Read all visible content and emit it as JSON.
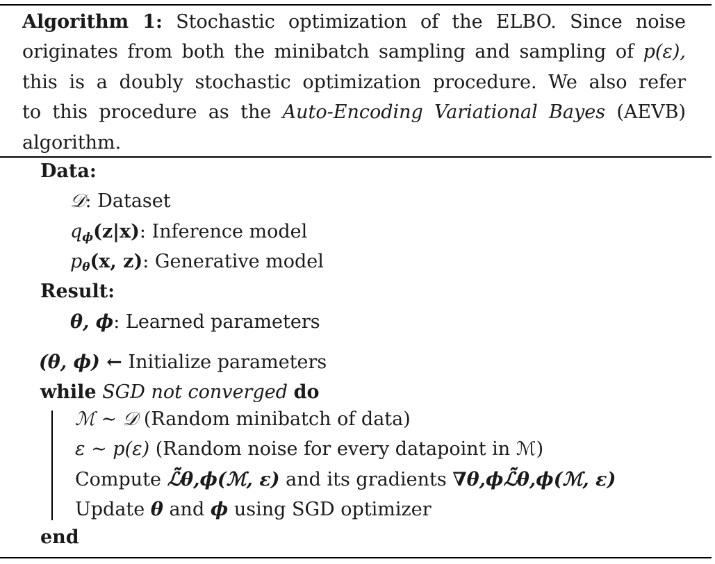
{
  "caption": {
    "label": "Algorithm 1:",
    "line1_rest": "Stochastic optimization of the ELBO. Since noise",
    "line2": "originates from both the minibatch sampling and sampling of",
    "line2_math": "p(ε),",
    "line3": "this is a doubly stochastic optimization procedure. We also refer",
    "line4_pre": "to this procedure as the",
    "line4_em": "Auto-Encoding Variational Bayes",
    "line4_post": "(AEVB)",
    "line5": "algorithm."
  },
  "data_section": {
    "heading": "Data:",
    "items": [
      {
        "symbol": "𝒟",
        "text": ": Dataset"
      },
      {
        "symbol": "q",
        "sub": "ϕ",
        "args": "(z|x)",
        "text": ": Inference model"
      },
      {
        "symbol": "p",
        "sub": "θ",
        "args": "(x, z)",
        "text": ": Generative model"
      }
    ]
  },
  "result_section": {
    "heading": "Result:",
    "item_symbol": "θ, ϕ",
    "item_text": ": Learned parameters"
  },
  "body": {
    "init_symbol": "(θ, ϕ) ←",
    "init_text": "Initialize parameters",
    "while_kw": "while",
    "while_cond": "SGD not converged",
    "do_kw": "do",
    "steps": [
      {
        "math": "ℳ ∼ 𝒟",
        "text": "(Random minibatch of data)"
      },
      {
        "math": "ε ∼ p(ε)",
        "text": "(Random noise for every datapoint in ℳ)"
      },
      {
        "pre": "Compute",
        "math": "ℒ̃θ,ϕ(ℳ, ε)",
        "mid": "and its gradients",
        "math2": "∇θ,ϕℒ̃θ,ϕ(ℳ, ε)"
      },
      {
        "pre": "Update",
        "sym1": "θ",
        "mid": "and",
        "sym2": "ϕ",
        "text": "using SGD optimizer"
      }
    ],
    "end_kw": "end"
  }
}
